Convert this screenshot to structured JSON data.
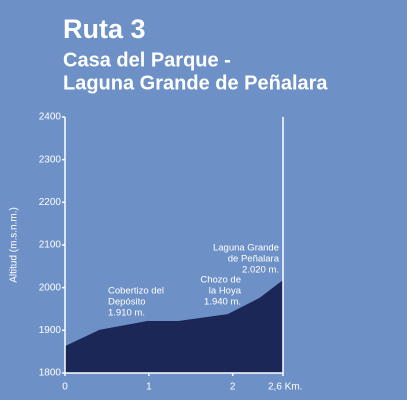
{
  "chart_data": {
    "type": "area",
    "title": "Ruta 3",
    "subtitle": [
      "Casa del Parque -",
      "Laguna Grande de Peñalara"
    ],
    "y_label": "Altitud (m.s.n.m.)",
    "x": [
      0,
      0.41,
      0.98,
      1.35,
      1.94,
      2.32,
      2.6
    ],
    "values": [
      1863,
      1901,
      1922,
      1922,
      1938,
      1976,
      2018
    ],
    "color": "#1b2857",
    "xlim": [
      0,
      2.6
    ],
    "xticks": [
      0,
      1,
      2,
      {
        "value": 2.6,
        "label": "2,6 Km."
      }
    ],
    "ylim": [
      1800,
      2400
    ],
    "yticks": [
      1800,
      1900,
      2000,
      2100,
      2200,
      2300,
      2400
    ],
    "annotations": [
      {
        "lines": [
          "Cobertizo del",
          "Depósito",
          "1.910 m."
        ]
      },
      {
        "lines": [
          "Chozo de",
          "la Hoya",
          "1.940 m."
        ]
      },
      {
        "lines": [
          "Laguna Grande",
          "de Peñalara",
          "2.020 m."
        ]
      }
    ]
  }
}
